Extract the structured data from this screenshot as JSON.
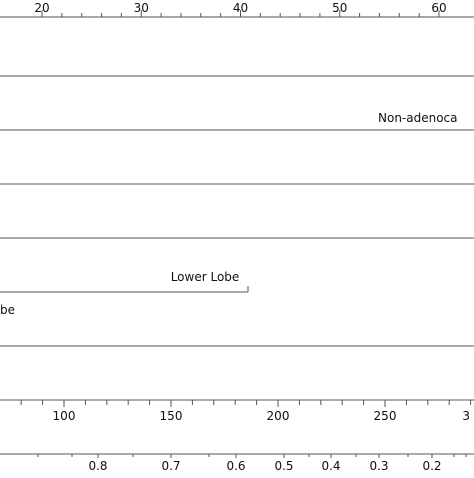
{
  "chart_data": {
    "type": "nomogram",
    "title": "",
    "axes": {
      "points": {
        "min": 20,
        "max": 60,
        "ticks": [
          20,
          30,
          40,
          50,
          60
        ],
        "tick_labels": [
          "20",
          "30",
          "40",
          "50",
          "60"
        ]
      },
      "total_points": {
        "min": 100,
        "max": 250,
        "ticks": [
          100,
          150,
          200,
          250
        ],
        "tick_labels": [
          "100",
          "150",
          "200",
          "250"
        ],
        "edge_label_right": "3"
      },
      "probability": {
        "ticks": [
          0.8,
          0.7,
          0.6,
          0.5,
          0.4,
          0.3,
          0.2
        ],
        "tick_labels": [
          "0.8",
          "0.7",
          "0.6",
          "0.5",
          "0.4",
          "0.3",
          "0.2"
        ]
      }
    },
    "variables": [
      {
        "name": "",
        "kind": "line"
      },
      {
        "name": "",
        "kind": "line",
        "label_visible": "Non-adenoca"
      },
      {
        "name": "",
        "kind": "line"
      },
      {
        "name": "",
        "kind": "line"
      },
      {
        "name": "",
        "kind": "segment",
        "labels": [
          "Lower Lobe",
          "be"
        ]
      },
      {
        "name": "",
        "kind": "line"
      }
    ]
  },
  "visible_text": {
    "non_adeno_label": "Non-adenoca",
    "lower_lobe_label": "Lower Lobe",
    "upper_fragment_label": "be",
    "right_edge_total_label": "3"
  },
  "colors": {
    "axis": "#555555",
    "line": "#555555",
    "background": "#ffffff",
    "text": "#111111"
  }
}
